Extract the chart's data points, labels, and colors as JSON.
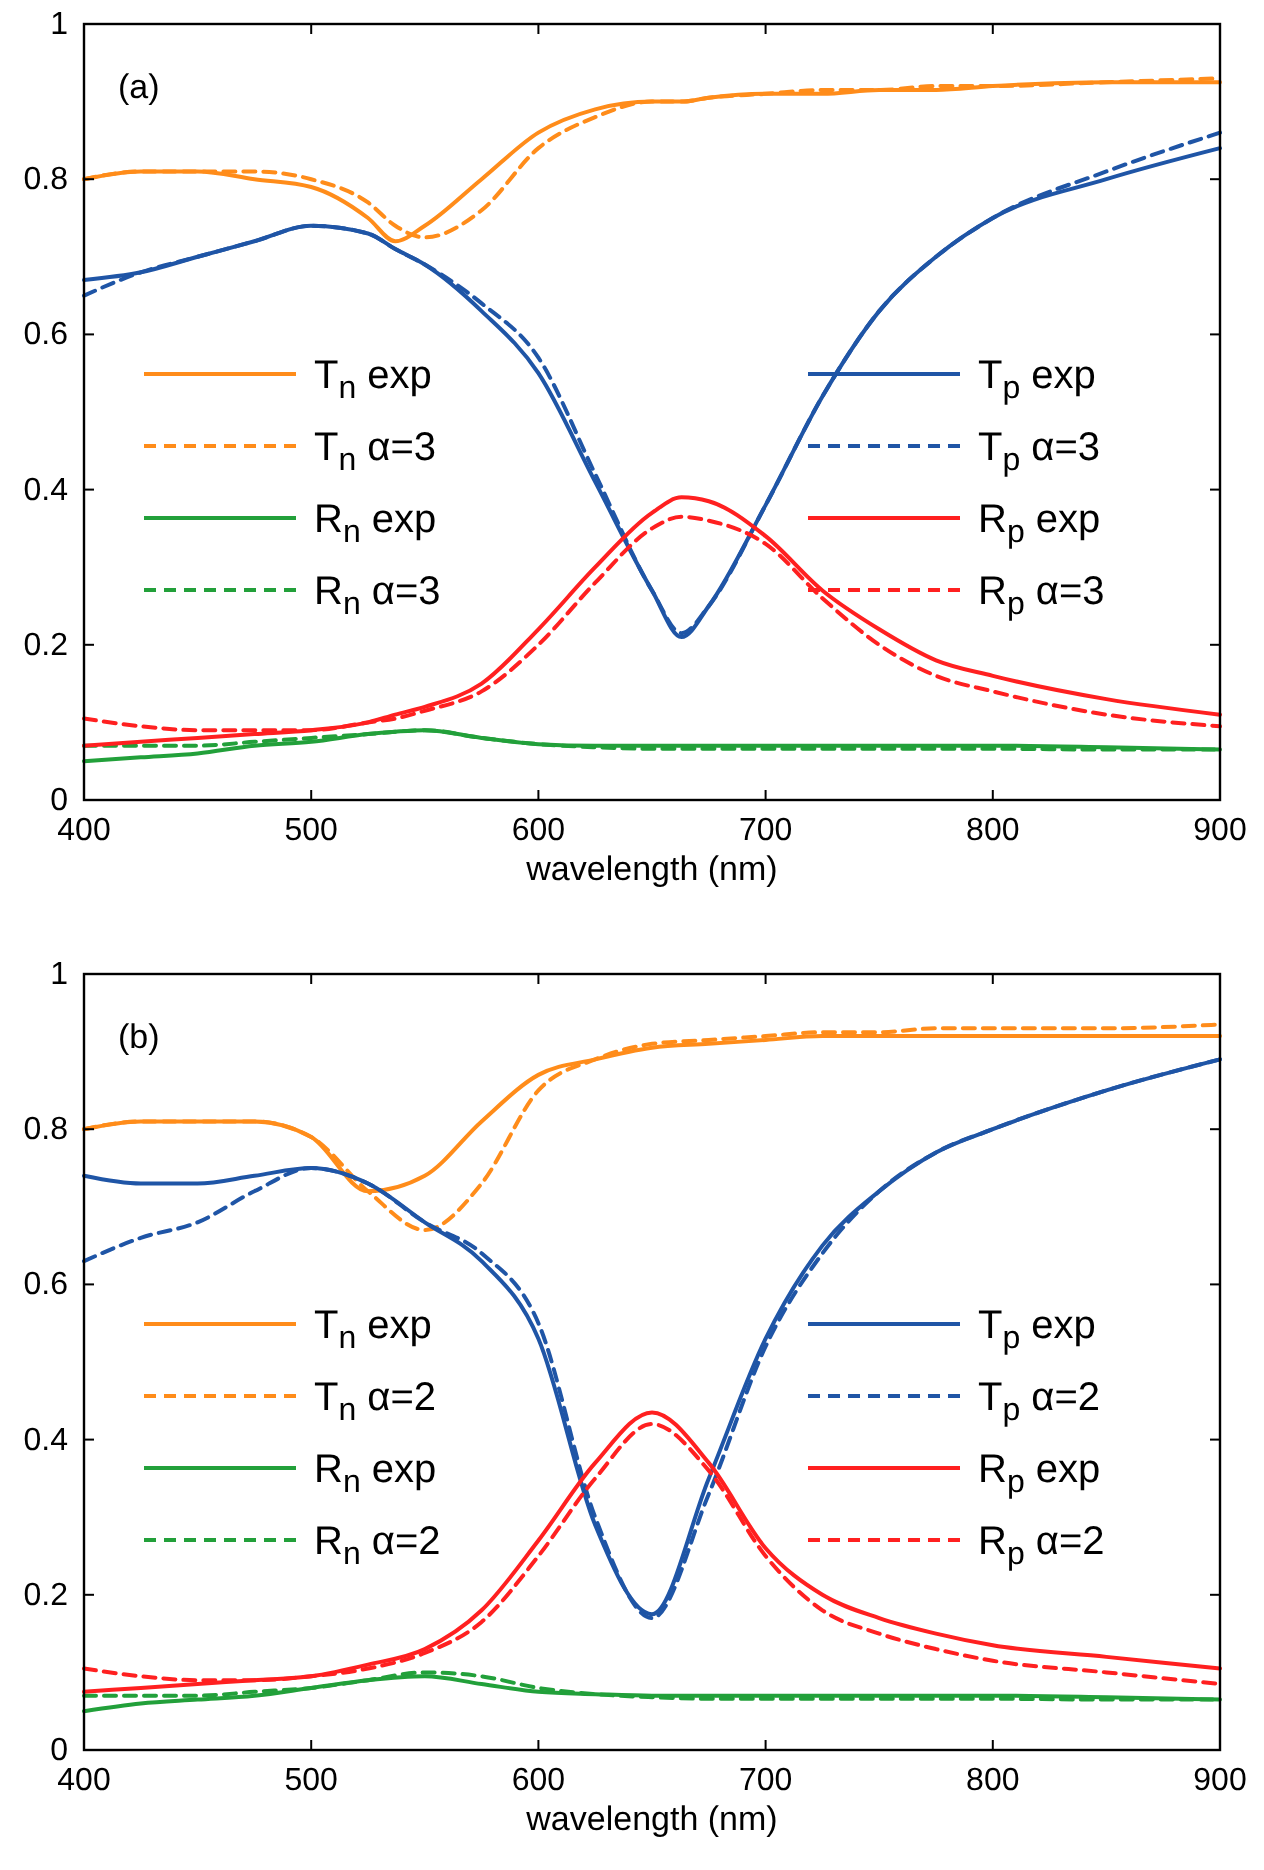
{
  "chart_data": [
    {
      "type": "line",
      "xlabel": "wavelength (nm)",
      "annotations": [
        "(a)"
      ],
      "xlim": [
        400,
        900
      ],
      "xticks": [
        400,
        500,
        600,
        700,
        800,
        900
      ],
      "ylim": [
        0,
        1
      ],
      "yticks": [
        0,
        0.2,
        0.4,
        0.6,
        0.8,
        1
      ],
      "legend": "center",
      "grid": false,
      "x": [
        400,
        425,
        450,
        475,
        500,
        525,
        537,
        550,
        575,
        600,
        625,
        650,
        663,
        675,
        700,
        725,
        750,
        775,
        800,
        850,
        900
      ],
      "series": [
        {
          "name": "T$_{n}$ exp",
          "color": "#ff8c1a",
          "line_style": "solid",
          "values": [
            0.8,
            0.81,
            0.81,
            0.8,
            0.79,
            0.75,
            0.72,
            0.74,
            0.8,
            0.86,
            0.89,
            0.9,
            0.9,
            0.905,
            0.91,
            0.91,
            0.915,
            0.915,
            0.92,
            0.925,
            0.925
          ]
        },
        {
          "name": "T$_{n}$ α=3",
          "color": "#ff8c1a",
          "line_style": "dashed",
          "values": [
            0.8,
            0.81,
            0.81,
            0.81,
            0.8,
            0.77,
            0.74,
            0.725,
            0.76,
            0.84,
            0.88,
            0.9,
            0.9,
            0.905,
            0.91,
            0.915,
            0.915,
            0.92,
            0.92,
            0.925,
            0.93
          ]
        },
        {
          "name": "R$_{n}$ exp",
          "color": "#22a03a",
          "line_style": "solid",
          "values": [
            0.05,
            0.055,
            0.06,
            0.07,
            0.075,
            0.085,
            0.088,
            0.09,
            0.08,
            0.072,
            0.07,
            0.07,
            0.07,
            0.07,
            0.07,
            0.07,
            0.07,
            0.07,
            0.07,
            0.068,
            0.065
          ]
        },
        {
          "name": "R$_{n}$ α=3",
          "color": "#22a03a",
          "line_style": "dashed",
          "values": [
            0.07,
            0.07,
            0.07,
            0.075,
            0.08,
            0.085,
            0.088,
            0.09,
            0.08,
            0.072,
            0.068,
            0.066,
            0.066,
            0.066,
            0.066,
            0.066,
            0.066,
            0.066,
            0.066,
            0.065,
            0.065
          ]
        },
        {
          "name": "T$_{p}$ exp",
          "color": "#1f55a6",
          "line_style": "solid",
          "values": [
            0.67,
            0.68,
            0.7,
            0.72,
            0.74,
            0.73,
            0.71,
            0.69,
            0.63,
            0.55,
            0.41,
            0.27,
            0.21,
            0.25,
            0.38,
            0.52,
            0.63,
            0.7,
            0.75,
            0.8,
            0.84
          ]
        },
        {
          "name": "T$_{p}$ α=3",
          "color": "#1f55a6",
          "line_style": "dashed",
          "values": [
            0.65,
            0.68,
            0.7,
            0.72,
            0.74,
            0.73,
            0.71,
            0.69,
            0.64,
            0.57,
            0.42,
            0.27,
            0.215,
            0.25,
            0.38,
            0.52,
            0.63,
            0.7,
            0.75,
            0.81,
            0.86
          ]
        },
        {
          "name": "R$_{p}$ exp",
          "color": "#ff2020",
          "line_style": "solid",
          "values": [
            0.07,
            0.075,
            0.08,
            0.085,
            0.09,
            0.1,
            0.11,
            0.12,
            0.15,
            0.22,
            0.3,
            0.37,
            0.39,
            0.385,
            0.34,
            0.27,
            0.22,
            0.18,
            0.16,
            0.13,
            0.11
          ]
        },
        {
          "name": "R$_{p}$ α=3",
          "color": "#ff2020",
          "line_style": "dashed",
          "values": [
            0.105,
            0.095,
            0.09,
            0.09,
            0.09,
            0.1,
            0.105,
            0.115,
            0.14,
            0.2,
            0.28,
            0.35,
            0.365,
            0.36,
            0.33,
            0.26,
            0.2,
            0.16,
            0.14,
            0.11,
            0.095
          ]
        }
      ]
    },
    {
      "type": "line",
      "xlabel": "wavelength (nm)",
      "annotations": [
        "(b)"
      ],
      "xlim": [
        400,
        900
      ],
      "xticks": [
        400,
        500,
        600,
        700,
        800,
        900
      ],
      "ylim": [
        0,
        1
      ],
      "yticks": [
        0,
        0.2,
        0.4,
        0.6,
        0.8,
        1
      ],
      "legend": "center",
      "grid": false,
      "x": [
        400,
        425,
        450,
        475,
        500,
        525,
        550,
        575,
        600,
        625,
        650,
        675,
        700,
        725,
        750,
        775,
        800,
        850,
        900
      ],
      "series": [
        {
          "name": "T$_{n}$ exp",
          "color": "#ff8c1a",
          "line_style": "solid",
          "values": [
            0.8,
            0.81,
            0.81,
            0.81,
            0.79,
            0.72,
            0.74,
            0.81,
            0.87,
            0.89,
            0.905,
            0.91,
            0.915,
            0.92,
            0.92,
            0.92,
            0.92,
            0.92,
            0.92
          ]
        },
        {
          "name": "T$_{n}$ α=2",
          "color": "#ff8c1a",
          "line_style": "dashed",
          "values": [
            0.8,
            0.81,
            0.81,
            0.81,
            0.79,
            0.72,
            0.67,
            0.73,
            0.85,
            0.89,
            0.91,
            0.915,
            0.92,
            0.925,
            0.925,
            0.93,
            0.93,
            0.93,
            0.935
          ]
        },
        {
          "name": "R$_{n}$ exp",
          "color": "#22a03a",
          "line_style": "solid",
          "values": [
            0.05,
            0.06,
            0.065,
            0.07,
            0.08,
            0.09,
            0.095,
            0.085,
            0.075,
            0.072,
            0.07,
            0.07,
            0.07,
            0.07,
            0.07,
            0.07,
            0.07,
            0.068,
            0.065
          ]
        },
        {
          "name": "R$_{n}$ α=2",
          "color": "#22a03a",
          "line_style": "dashed",
          "values": [
            0.07,
            0.07,
            0.07,
            0.075,
            0.08,
            0.09,
            0.1,
            0.095,
            0.08,
            0.072,
            0.068,
            0.066,
            0.066,
            0.066,
            0.066,
            0.066,
            0.066,
            0.065,
            0.065
          ]
        },
        {
          "name": "T$_{p}$ exp",
          "color": "#1f55a6",
          "line_style": "solid",
          "values": [
            0.74,
            0.73,
            0.73,
            0.74,
            0.75,
            0.73,
            0.68,
            0.63,
            0.53,
            0.29,
            0.175,
            0.35,
            0.53,
            0.65,
            0.72,
            0.77,
            0.8,
            0.85,
            0.89
          ]
        },
        {
          "name": "T$_{p}$ α=2",
          "color": "#1f55a6",
          "line_style": "dashed",
          "values": [
            0.63,
            0.66,
            0.68,
            0.72,
            0.75,
            0.73,
            0.68,
            0.64,
            0.55,
            0.3,
            0.17,
            0.33,
            0.52,
            0.64,
            0.72,
            0.77,
            0.8,
            0.85,
            0.89
          ]
        },
        {
          "name": "R$_{p}$ exp",
          "color": "#ff2020",
          "line_style": "solid",
          "values": [
            0.075,
            0.08,
            0.085,
            0.09,
            0.095,
            0.11,
            0.13,
            0.18,
            0.27,
            0.37,
            0.435,
            0.37,
            0.26,
            0.2,
            0.17,
            0.15,
            0.135,
            0.12,
            0.105
          ]
        },
        {
          "name": "R$_{p}$ α=2",
          "color": "#ff2020",
          "line_style": "dashed",
          "values": [
            0.105,
            0.095,
            0.09,
            0.09,
            0.095,
            0.105,
            0.125,
            0.165,
            0.25,
            0.35,
            0.42,
            0.36,
            0.25,
            0.18,
            0.15,
            0.13,
            0.115,
            0.1,
            0.085
          ]
        }
      ]
    }
  ]
}
